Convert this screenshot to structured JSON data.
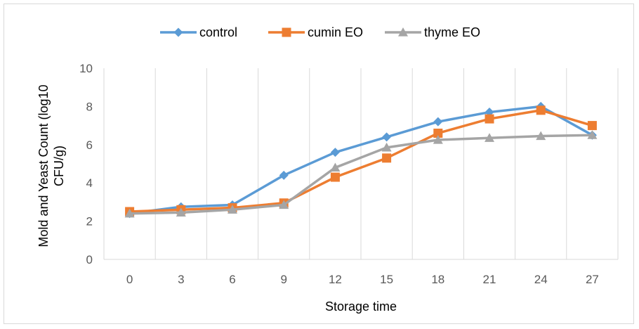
{
  "chart_data": {
    "type": "line",
    "title": "",
    "xlabel": "Storage time",
    "ylabel_lines": [
      "Mold and Yeast Count (log10",
      "CFU/g)"
    ],
    "categories": [
      "0",
      "3",
      "6",
      "9",
      "12",
      "15",
      "18",
      "21",
      "24",
      "27"
    ],
    "ylim": [
      0,
      10
    ],
    "yticks": [
      "0",
      "2",
      "4",
      "6",
      "8",
      "10"
    ],
    "grid": "vertical",
    "legend_position": "top",
    "series": [
      {
        "name": "control",
        "color": "#5B9BD5",
        "marker": "diamond",
        "values": [
          2.4,
          2.75,
          2.85,
          4.4,
          5.6,
          6.4,
          7.2,
          7.7,
          8.0,
          6.5
        ]
      },
      {
        "name": "cumin EO",
        "color": "#ED7D31",
        "marker": "square",
        "values": [
          2.5,
          2.6,
          2.7,
          2.95,
          4.3,
          5.3,
          6.6,
          7.35,
          7.8,
          7.0
        ]
      },
      {
        "name": "thyme EO",
        "color": "#A5A5A5",
        "marker": "triangle",
        "values": [
          2.4,
          2.45,
          2.6,
          2.85,
          4.8,
          5.85,
          6.25,
          6.35,
          6.45,
          6.5
        ]
      }
    ]
  }
}
